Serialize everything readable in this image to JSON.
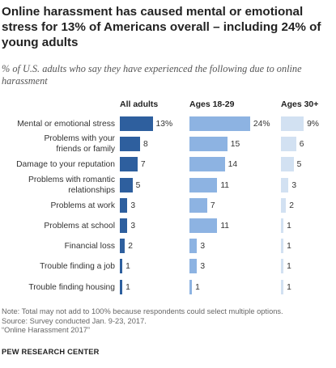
{
  "title": "Online harassment has caused mental or emotional stress for 13% of Americans overall – including 24% of young adults",
  "subtitle": "% of U.S. adults who say they have experienced the following due to online harassment",
  "chart_data": {
    "type": "bar",
    "orientation": "horizontal",
    "categories": [
      "Mental or emotional stress",
      "Problems with your friends or family",
      "Damage to your reputation",
      "Problems with romantic relationships",
      "Problems at work",
      "Problems at school",
      "Financial loss",
      "Trouble finding a job",
      "Trouble finding housing"
    ],
    "category_lines": [
      [
        "Mental or emotional stress"
      ],
      [
        "Problems with your",
        "friends or family"
      ],
      [
        "Damage to your reputation"
      ],
      [
        "Problems with romantic",
        "relationships"
      ],
      [
        "Problems at work"
      ],
      [
        "Problems at school"
      ],
      [
        "Financial loss"
      ],
      [
        "Trouble finding a job"
      ],
      [
        "Trouble finding housing"
      ]
    ],
    "series": [
      {
        "name": "All adults",
        "values": [
          13,
          8,
          7,
          5,
          3,
          3,
          2,
          1,
          1
        ],
        "color": "#2e5f9e"
      },
      {
        "name": "Ages 18-29",
        "values": [
          24,
          15,
          14,
          11,
          7,
          11,
          3,
          3,
          1
        ],
        "color": "#8db3e2"
      },
      {
        "name": "Ages 30+",
        "values": [
          9,
          6,
          5,
          3,
          2,
          1,
          1,
          1,
          1
        ],
        "color": "#d2e1f2"
      }
    ],
    "first_value_suffix": "%"
  },
  "notes": [
    "Note: Total may not add to 100% because respondents could select multiple options.",
    "Source: Survey conducted Jan. 9-23, 2017.",
    "“Online Harassment 2017”"
  ],
  "source_org": "PEW RESEARCH CENTER"
}
